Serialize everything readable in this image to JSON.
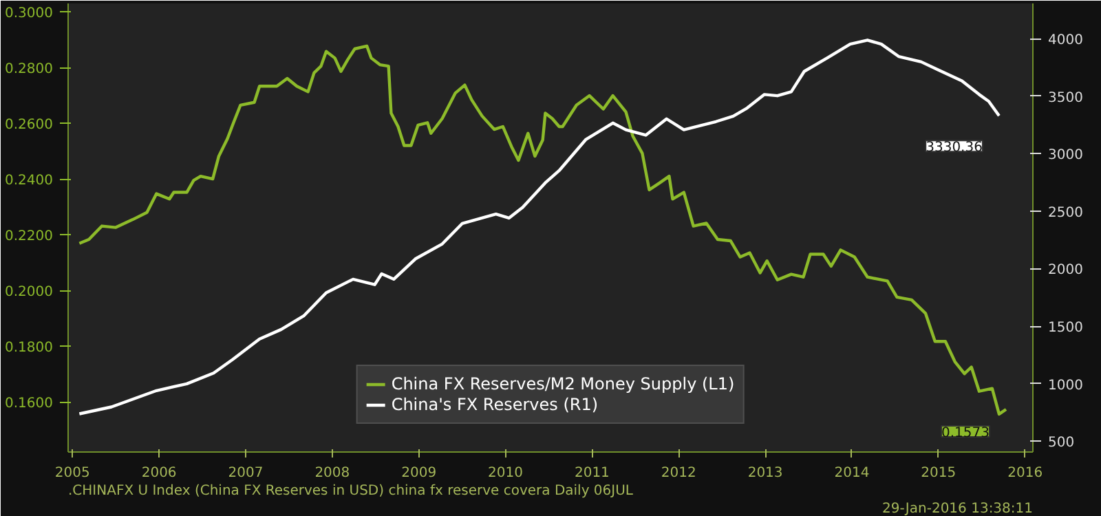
{
  "chart_data": {
    "type": "line",
    "x": [
      2005.58,
      2005.69,
      2005.84,
      2006.0,
      2006.2,
      2006.36,
      2006.47,
      2006.62,
      2006.67,
      2006.82,
      2006.9,
      2006.98,
      2007.12,
      2007.19,
      2007.29,
      2007.36,
      2007.44,
      2007.6,
      2007.66,
      2007.86,
      2007.98,
      2008.09,
      2008.22,
      2008.29,
      2008.37,
      2008.43,
      2008.53,
      2008.6,
      2008.68,
      2008.76,
      2008.9,
      2008.95,
      2009.05,
      2009.15,
      2009.18,
      2009.26,
      2009.33,
      2009.41,
      2009.49,
      2009.6,
      2009.64,
      2009.77,
      2009.92,
      2010.03,
      2010.11,
      2010.23,
      2010.37,
      2010.47,
      2010.57,
      2010.65,
      2010.76,
      2010.84,
      2010.93,
      2010.96,
      2011.04,
      2011.12,
      2011.16,
      2011.32,
      2011.47,
      2011.63,
      2011.74,
      2011.89,
      2011.97,
      2012.08,
      2012.16,
      2012.28,
      2012.39,
      2012.43,
      2012.56,
      2012.67,
      2012.82,
      2012.95,
      2013.1,
      2013.21,
      2013.32,
      2013.44,
      2013.52,
      2013.64,
      2013.8,
      2013.94,
      2014.02,
      2014.17,
      2014.26,
      2014.37,
      2014.53,
      2014.68,
      2014.91,
      2015.02,
      2015.19,
      2015.35,
      2015.46,
      2015.58,
      2015.69,
      2015.8,
      2015.88,
      2015.97,
      2016.12,
      2016.2,
      2016.28
    ],
    "series": [
      {
        "name": "China FX Reserves/M2 Money Supply (L1)",
        "color": "#8dbb2a",
        "values": [
          0.2169,
          0.2183,
          0.2231,
          0.2226,
          0.2255,
          0.228,
          0.2347,
          0.2328,
          0.2352,
          0.2352,
          0.2395,
          0.241,
          0.24,
          0.2482,
          0.2545,
          0.2602,
          0.2665,
          0.2675,
          0.2733,
          0.2733,
          0.2761,
          0.2733,
          0.2713,
          0.2781,
          0.2805,
          0.2858,
          0.2834,
          0.2786,
          0.2829,
          0.2867,
          0.2877,
          0.2834,
          0.281,
          0.2805,
          0.2636,
          0.2588,
          0.252,
          0.252,
          0.2593,
          0.2602,
          0.2564,
          0.2617,
          0.2708,
          0.2737,
          0.2684,
          0.2626,
          0.2578,
          0.2588,
          0.2516,
          0.2467,
          0.2564,
          0.2482,
          0.254,
          0.2636,
          0.2617,
          0.2588,
          0.2588,
          0.2665,
          0.2699,
          0.2651,
          0.2699,
          0.2641,
          0.2554,
          0.2492,
          0.2361,
          0.2386,
          0.241,
          0.2328,
          0.2352,
          0.2231,
          0.2241,
          0.2183,
          0.2178,
          0.212,
          0.2135,
          0.2063,
          0.2106,
          0.2038,
          0.2058,
          0.2048,
          0.213,
          0.213,
          0.2087,
          0.2145,
          0.212,
          0.2048,
          0.2034,
          0.1976,
          0.1966,
          0.1918,
          0.1817,
          0.1817,
          0.1744,
          0.1701,
          0.1725,
          0.1638,
          0.1648,
          0.1556,
          0.1573
        ],
        "value_labels": [
          null,
          null,
          null,
          null,
          null,
          null,
          null,
          null,
          null,
          null,
          null,
          null,
          null,
          null,
          null,
          null,
          null,
          null,
          null,
          null,
          null,
          null,
          null,
          null,
          null,
          null,
          null,
          null,
          null,
          null,
          null,
          null,
          null,
          null,
          null,
          null,
          null,
          null,
          null,
          null,
          null,
          null,
          null,
          null,
          null,
          null,
          null,
          null,
          null,
          null,
          null,
          null,
          null,
          null,
          null,
          null,
          null,
          null,
          null,
          null,
          null,
          null,
          null,
          null,
          null,
          null,
          null,
          null,
          null,
          null,
          null,
          null,
          null,
          null,
          null,
          null,
          null,
          null,
          null,
          null,
          null,
          null,
          null,
          null,
          null,
          null,
          null,
          null,
          null,
          null,
          null,
          null,
          null,
          null,
          null,
          null,
          null,
          null,
          "0.1573"
        ]
      },
      {
        "name": "China's FX Reserves (R1)",
        "color": "#ffffff",
        "axis": "y2",
        "x": [
          2005.58,
          2005.95,
          2006.47,
          2006.82,
          2007.13,
          2007.35,
          2007.66,
          2007.91,
          2008.17,
          2008.43,
          2008.74,
          2008.99,
          2009.07,
          2009.21,
          2009.46,
          2009.77,
          2010.0,
          2010.39,
          2010.54,
          2010.7,
          2010.96,
          2011.12,
          2011.43,
          2011.74,
          2011.89,
          2012.12,
          2012.36,
          2012.56,
          2012.93,
          2013.13,
          2013.29,
          2013.49,
          2013.64,
          2013.8,
          2013.95,
          2014.22,
          2014.48,
          2014.68,
          2014.84,
          2015.04,
          2015.3,
          2015.5,
          2015.77,
          2015.97,
          2016.08,
          2016.2
        ],
        "values": [
          737,
          797,
          939,
          998,
          1092,
          1210,
          1388,
          1471,
          1589,
          1790,
          1908,
          1861,
          1955,
          1908,
          2085,
          2215,
          2392,
          2475,
          2440,
          2534,
          2747,
          2853,
          3125,
          3267,
          3208,
          3161,
          3303,
          3208,
          3279,
          3326,
          3397,
          3515,
          3504,
          3539,
          3716,
          3835,
          3953,
          3988,
          3953,
          3846,
          3799,
          3728,
          3634,
          3515,
          3456,
          3330.36
        ],
        "value_labels": [
          null,
          null,
          null,
          null,
          null,
          null,
          null,
          null,
          null,
          null,
          null,
          null,
          null,
          null,
          null,
          null,
          null,
          null,
          null,
          null,
          null,
          null,
          null,
          null,
          null,
          null,
          null,
          null,
          null,
          null,
          null,
          null,
          null,
          null,
          null,
          null,
          null,
          null,
          null,
          null,
          null,
          null,
          null,
          null,
          null,
          "3330.36"
        ]
      }
    ],
    "xlim": [
      2005.45,
      2016.59
    ],
    "xticks": [
      {
        "value": 2005.5,
        "label": "2005"
      },
      {
        "value": 2006.5,
        "label": "2006"
      },
      {
        "value": 2007.5,
        "label": "2007"
      },
      {
        "value": 2008.5,
        "label": "2008"
      },
      {
        "value": 2009.5,
        "label": "2009"
      },
      {
        "value": 2010.5,
        "label": "2010"
      },
      {
        "value": 2011.5,
        "label": "2011"
      },
      {
        "value": 2012.5,
        "label": "2012"
      },
      {
        "value": 2013.5,
        "label": "2013"
      },
      {
        "value": 2014.5,
        "label": "2014"
      },
      {
        "value": 2015.5,
        "label": "2015"
      },
      {
        "value": 2016.5,
        "label": "2016"
      }
    ],
    "ylim": [
      0.142,
      0.303
    ],
    "yticks": [
      {
        "value": 0.16,
        "label": "0.1600"
      },
      {
        "value": 0.18,
        "label": "0.1800"
      },
      {
        "value": 0.2,
        "label": "0.2000"
      },
      {
        "value": 0.22,
        "label": "0.2200"
      },
      {
        "value": 0.24,
        "label": "0.2400"
      },
      {
        "value": 0.26,
        "label": "0.2600"
      },
      {
        "value": 0.28,
        "label": "0.2800"
      },
      {
        "value": 0.3,
        "label": "0.3000"
      }
    ],
    "y2lim": [
      405,
      4307
    ],
    "y2ticks": [
      500,
      1000,
      1500,
      2000,
      2500,
      3000,
      3500,
      4000
    ],
    "legend": "bottom",
    "grid": false,
    "annotations": [
      ".CHINAFX U Index (China FX Reserves in USD) china fx reserve covera  Daily 06JUL",
      "29-Jan-2016 13:38:11"
    ]
  }
}
